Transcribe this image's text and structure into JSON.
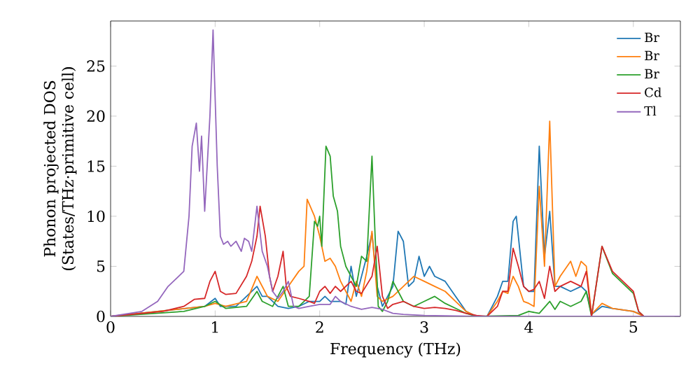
{
  "chart_data": {
    "type": "line",
    "xlabel": "Frequency (THz)",
    "ylabel": "Phonon projected DOS\n(States/THz·primitive cell)",
    "xlim": [
      0,
      5.45
    ],
    "ylim": [
      0,
      29.5
    ],
    "xticks": [
      0,
      1,
      2,
      3,
      4,
      5
    ],
    "yticks": [
      0,
      5,
      10,
      15,
      20,
      25
    ],
    "legend": "top right",
    "grid": false,
    "marker": "none",
    "line_style": "solid",
    "series": [
      {
        "name": "Br",
        "color": "#1f77b4",
        "x": [
          0,
          0.9,
          1.0,
          1.05,
          1.2,
          1.4,
          1.45,
          1.5,
          1.6,
          1.7,
          1.8,
          1.9,
          2.0,
          2.05,
          2.1,
          2.2,
          2.25,
          2.3,
          2.35,
          2.45,
          2.5,
          2.55,
          2.6,
          2.7,
          2.75,
          2.8,
          2.85,
          2.9,
          2.95,
          3.0,
          3.05,
          3.1,
          3.2,
          3.3,
          3.4,
          3.5,
          3.6,
          3.7,
          3.75,
          3.8,
          3.85,
          3.88,
          3.95,
          4.0,
          4.05,
          4.1,
          4.15,
          4.2,
          4.25,
          4.3,
          4.4,
          4.5,
          4.55,
          4.6,
          4.7,
          4.8,
          5.0,
          5.07
        ],
        "values": [
          0,
          1,
          1.8,
          1,
          1,
          3,
          2,
          2,
          1,
          0.8,
          1,
          1.5,
          1.5,
          2,
          1.5,
          1.5,
          1.2,
          5,
          2,
          6,
          8.3,
          3,
          1,
          3,
          8.5,
          7.5,
          3,
          3.5,
          6,
          4,
          5,
          4,
          3.5,
          2,
          0.5,
          0,
          0,
          2,
          3.5,
          3.5,
          9.5,
          10,
          3,
          2.5,
          2.5,
          17,
          6,
          10.5,
          3,
          3,
          2.5,
          3,
          2.5,
          0.2,
          1,
          0.8,
          0.5,
          0.2
        ]
      },
      {
        "name": "Br",
        "color": "#ff7f0e",
        "x": [
          0,
          0.9,
          1.0,
          1.1,
          1.3,
          1.4,
          1.45,
          1.5,
          1.6,
          1.7,
          1.8,
          1.85,
          1.88,
          1.95,
          2.0,
          2.05,
          2.1,
          2.15,
          2.2,
          2.3,
          2.35,
          2.4,
          2.45,
          2.5,
          2.55,
          2.6,
          2.7,
          2.8,
          2.9,
          3.0,
          3.1,
          3.2,
          3.3,
          3.4,
          3.5,
          3.6,
          3.7,
          3.75,
          3.8,
          3.85,
          3.9,
          3.95,
          4.0,
          4.05,
          4.1,
          4.15,
          4.2,
          4.25,
          4.3,
          4.4,
          4.45,
          4.5,
          4.55,
          4.6,
          4.7,
          4.8,
          5.0,
          5.1,
          5.45
        ],
        "values": [
          0,
          1,
          1.3,
          1,
          1.5,
          4,
          3,
          2,
          1.5,
          3,
          4.5,
          5,
          11.7,
          10,
          8,
          5.5,
          5.8,
          5,
          3.5,
          1.5,
          3.5,
          2,
          4.5,
          8.5,
          2,
          1.5,
          2,
          3,
          4,
          3.5,
          3,
          2.5,
          1.5,
          0.5,
          0,
          0,
          1.5,
          2.5,
          2.3,
          4,
          3,
          1.5,
          1.3,
          1,
          13,
          5,
          19.5,
          3,
          4,
          5.5,
          4,
          5.5,
          5,
          0.2,
          1.3,
          0.8,
          0.5,
          0,
          0
        ]
      },
      {
        "name": "Br",
        "color": "#2ca02c",
        "x": [
          0,
          0.7,
          0.9,
          1.0,
          1.1,
          1.3,
          1.4,
          1.45,
          1.55,
          1.65,
          1.7,
          1.8,
          1.85,
          1.9,
          1.92,
          1.95,
          1.98,
          2.0,
          2.02,
          2.06,
          2.1,
          2.13,
          2.17,
          2.2,
          2.25,
          2.3,
          2.35,
          2.4,
          2.45,
          2.5,
          2.53,
          2.56,
          2.6,
          2.65,
          2.7,
          2.75,
          2.8,
          2.9,
          3.0,
          3.1,
          3.2,
          3.3,
          3.4,
          3.5,
          3.9,
          4.0,
          4.1,
          4.2,
          4.25,
          4.3,
          4.4,
          4.5,
          4.55,
          4.6,
          4.7,
          4.8,
          4.9,
          5.0,
          5.05,
          5.1,
          5.45
        ],
        "values": [
          0,
          0.5,
          1,
          1.5,
          0.8,
          1,
          2.5,
          1.5,
          1,
          3,
          1,
          1,
          1.5,
          2,
          5,
          9.5,
          9,
          10,
          7,
          17,
          16,
          12,
          10.5,
          7,
          5,
          4,
          3,
          6,
          5.5,
          16,
          8,
          1,
          0.5,
          1.5,
          3.5,
          2.5,
          1.5,
          1,
          1.5,
          2,
          1.3,
          0.8,
          0.3,
          0,
          0.1,
          0.5,
          0.3,
          1.5,
          0.7,
          1.5,
          1,
          1.5,
          2.5,
          0,
          7,
          4.3,
          3.3,
          2.3,
          0.5,
          0,
          0
        ]
      },
      {
        "name": "Cd",
        "color": "#d62728",
        "x": [
          0,
          0.5,
          0.7,
          0.8,
          0.9,
          0.95,
          1.0,
          1.05,
          1.1,
          1.2,
          1.3,
          1.35,
          1.4,
          1.43,
          1.48,
          1.52,
          1.55,
          1.6,
          1.65,
          1.68,
          1.72,
          1.8,
          1.9,
          1.95,
          2.0,
          2.05,
          2.1,
          2.15,
          2.2,
          2.3,
          2.35,
          2.4,
          2.5,
          2.55,
          2.6,
          2.65,
          2.7,
          2.8,
          2.9,
          3.0,
          3.1,
          3.2,
          3.3,
          3.4,
          3.5,
          3.6,
          3.7,
          3.75,
          3.8,
          3.85,
          3.9,
          3.95,
          4.0,
          4.05,
          4.1,
          4.15,
          4.2,
          4.25,
          4.3,
          4.4,
          4.5,
          4.55,
          4.6,
          4.7,
          4.8,
          4.9,
          5.0,
          5.05,
          5.1,
          5.45
        ],
        "values": [
          0,
          0.5,
          1,
          1.7,
          1.8,
          3.5,
          4.5,
          2.5,
          2.2,
          2.3,
          4,
          5.5,
          8,
          11,
          8,
          4,
          2.5,
          4,
          6.5,
          3,
          2,
          1.8,
          1.5,
          1.3,
          2.5,
          3,
          2.3,
          3,
          2.5,
          3.5,
          2.5,
          2.3,
          4,
          7,
          2,
          0.8,
          1.2,
          1.5,
          1,
          0.8,
          0.9,
          0.8,
          0.6,
          0.3,
          0.1,
          0,
          1,
          2.5,
          2.5,
          6.8,
          5,
          3,
          2.5,
          2.7,
          3.5,
          1.8,
          5,
          2.5,
          3,
          3.5,
          3,
          4.5,
          0,
          7,
          4.5,
          3.5,
          2.5,
          0.5,
          0,
          0
        ]
      },
      {
        "name": "Tl",
        "color": "#9467bd",
        "x": [
          0,
          0.3,
          0.45,
          0.55,
          0.65,
          0.7,
          0.75,
          0.78,
          0.82,
          0.85,
          0.87,
          0.9,
          0.95,
          0.98,
          1.02,
          1.05,
          1.08,
          1.12,
          1.15,
          1.2,
          1.25,
          1.28,
          1.32,
          1.35,
          1.4,
          1.45,
          1.5,
          1.55,
          1.6,
          1.65,
          1.7,
          1.75,
          1.8,
          1.9,
          2.0,
          2.1,
          2.15,
          2.2,
          2.3,
          2.4,
          2.5,
          2.6,
          2.7,
          2.8,
          3.0,
          3.5,
          5.45
        ],
        "values": [
          0,
          0.5,
          1.5,
          3,
          4,
          4.5,
          10,
          17,
          19.3,
          14.5,
          18,
          10.5,
          20,
          28.6,
          15,
          8,
          7.2,
          7.5,
          7,
          7.5,
          6.5,
          7.8,
          7.5,
          6.5,
          11,
          6.5,
          5,
          2.5,
          1.8,
          2.5,
          3.5,
          1,
          0.8,
          1,
          1.2,
          1.2,
          2,
          1.5,
          1,
          0.7,
          0.9,
          0.7,
          0.3,
          0.2,
          0.1,
          0,
          0
        ]
      }
    ]
  }
}
